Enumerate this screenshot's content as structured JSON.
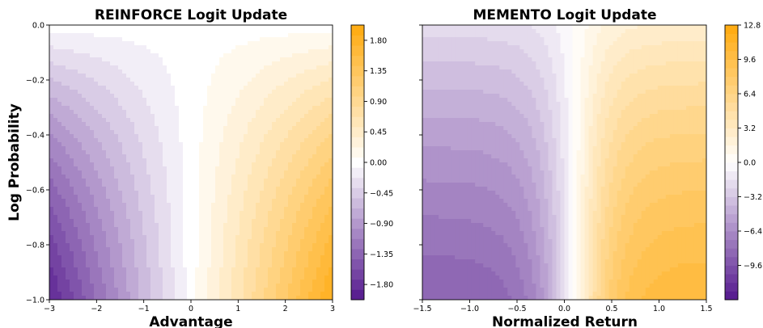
{
  "chart_data": [
    {
      "type": "heatmap",
      "title": "REINFORCE Logit Update",
      "xlabel": "Advantage",
      "ylabel": "Log Probability",
      "xlim": [
        -3,
        3
      ],
      "ylim": [
        -1.0,
        0.0
      ],
      "xticks": [
        "−3",
        "−2",
        "−1",
        "0",
        "1",
        "2",
        "3"
      ],
      "xtick_values": [
        -3,
        -2,
        -1,
        0,
        1,
        2,
        3
      ],
      "yticks": [
        "0.0",
        "−0.2",
        "−0.4",
        "−0.6",
        "−0.8",
        "−1.0"
      ],
      "ytick_values": [
        0.0,
        -0.2,
        -0.4,
        -0.6,
        -0.8,
        -1.0
      ],
      "colorbar": {
        "min": -2.025,
        "max": 2.025,
        "step": 0.15,
        "ticks": [
          "1.80",
          "1.35",
          "0.90",
          "0.45",
          "0.00",
          "−0.45",
          "−0.90",
          "−1.35",
          "−1.80"
        ],
        "tick_values": [
          1.8,
          1.35,
          0.9,
          0.45,
          0.0,
          -0.45,
          -0.9,
          -1.35,
          -1.8
        ]
      },
      "colors": {
        "negative": "#4b0c87",
        "positive": "#ffa500",
        "neutral": "#ffffff"
      }
    },
    {
      "type": "heatmap",
      "title": "MEMENTO Logit Update",
      "xlabel": "Normalized Return",
      "ylabel": "",
      "xlim": [
        -1.5,
        1.5
      ],
      "ylim": [
        -1.0,
        0.0
      ],
      "xticks": [
        "−1.5",
        "−1.0",
        "−0.5",
        "0.0",
        "0.5",
        "1.0",
        "1.5"
      ],
      "xtick_values": [
        -1.5,
        -1.0,
        -0.5,
        0.0,
        0.5,
        1.0,
        1.5
      ],
      "yticks": [],
      "ytick_values": [
        0.0,
        -0.2,
        -0.4,
        -0.6,
        -0.8,
        -1.0
      ],
      "colorbar": {
        "min": -12.8,
        "max": 12.8,
        "step": 0.8,
        "ticks": [
          "12.8",
          "9.6",
          "6.4",
          "3.2",
          "0.0",
          "−3.2",
          "−6.4",
          "−9.6"
        ],
        "tick_values": [
          12.8,
          9.6,
          6.4,
          3.2,
          0.0,
          -3.2,
          -6.4,
          -9.6
        ]
      },
      "colors": {
        "negative": "#4b0c87",
        "positive": "#ffa500",
        "neutral": "#ffffff"
      }
    }
  ]
}
